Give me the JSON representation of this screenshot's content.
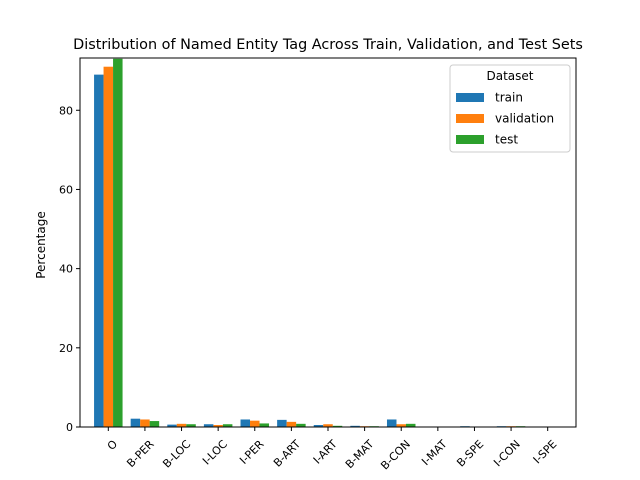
{
  "chart_data": {
    "type": "bar",
    "title": "Distribution of Named Entity Tag Across Train, Validation, and Test Sets",
    "xlabel": "",
    "ylabel": "Percentage",
    "ylim": [
      0,
      93.2
    ],
    "yticks": [
      0,
      20,
      40,
      60,
      80
    ],
    "grid": false,
    "categories": [
      "O",
      "B-PER",
      "B-LOC",
      "I-LOC",
      "I-PER",
      "B-ART",
      "I-ART",
      "B-MAT",
      "B-CON",
      "I-MAT",
      "B-SPE",
      "I-CON",
      "I-SPE"
    ],
    "series": [
      {
        "name": "train",
        "color": "#1f77b4",
        "values": [
          89.0,
          2.1,
          0.6,
          0.7,
          1.9,
          1.8,
          0.5,
          0.3,
          1.9,
          0.1,
          0.2,
          0.2,
          0.05
        ]
      },
      {
        "name": "validation",
        "color": "#ff7f0e",
        "values": [
          91.0,
          1.9,
          0.8,
          0.5,
          1.6,
          1.3,
          0.7,
          0.2,
          0.7,
          0.1,
          0.1,
          0.2,
          0.05
        ]
      },
      {
        "name": "test",
        "color": "#2ca02c",
        "values": [
          93.0,
          1.5,
          0.7,
          0.7,
          0.9,
          0.8,
          0.3,
          0.2,
          0.8,
          0.1,
          0.1,
          0.2,
          0.05
        ]
      }
    ],
    "legend": {
      "title": "Dataset",
      "placement": "top-right"
    }
  }
}
